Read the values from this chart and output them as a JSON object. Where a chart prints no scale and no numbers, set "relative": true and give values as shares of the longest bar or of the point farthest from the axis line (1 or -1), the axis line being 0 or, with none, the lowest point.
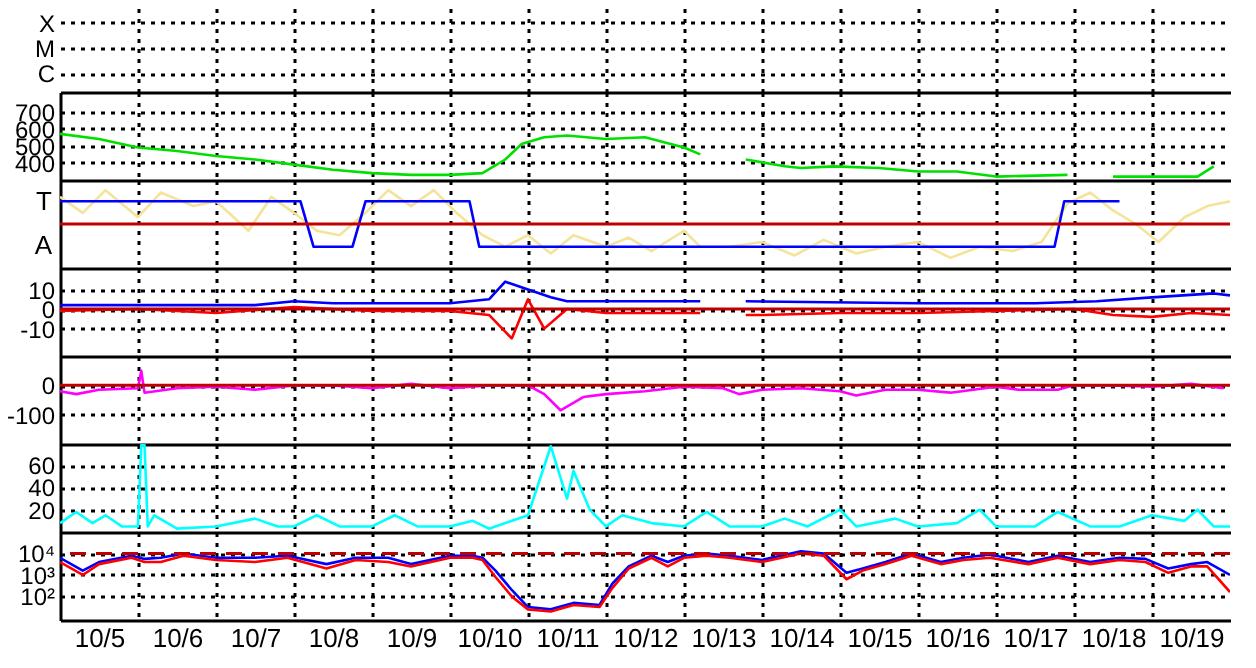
{
  "chart_data": [
    {
      "type": "other",
      "y_categories": [
        "X",
        "M",
        "C"
      ]
    },
    {
      "type": "line",
      "xlim": [
        "--10-05",
        "--10-20"
      ],
      "xticks": [
        {
          "value": "--10-05T12:00",
          "label": "10/5"
        },
        {
          "value": "--10-06",
          "label": null
        },
        {
          "value": "--10-06T12:00",
          "label": "10/6"
        },
        {
          "value": "--10-07",
          "label": null
        },
        {
          "value": "--10-07T12:00",
          "label": "10/7"
        },
        {
          "value": "--10-08",
          "label": null
        },
        {
          "value": "--10-08T12:00",
          "label": "10/8"
        },
        {
          "value": "--10-09",
          "label": null
        },
        {
          "value": "--10-09T12:00",
          "label": "10/9"
        },
        {
          "value": "--10-10",
          "label": null
        },
        {
          "value": "--10-10T12:00",
          "label": "10/10"
        },
        {
          "value": "--10-11",
          "label": null
        },
        {
          "value": "--10-11T12:00",
          "label": "10/11"
        },
        {
          "value": "--10-12",
          "label": null
        },
        {
          "value": "--10-12T12:00",
          "label": "10/12"
        },
        {
          "value": "--10-13",
          "label": null
        },
        {
          "value": "--10-13T12:00",
          "label": "10/13"
        },
        {
          "value": "--10-14",
          "label": null
        },
        {
          "value": "--10-14T12:00",
          "label": "10/14"
        },
        {
          "value": "--10-15",
          "label": null
        },
        {
          "value": "--10-15T12:00",
          "label": "10/15"
        },
        {
          "value": "--10-16",
          "label": null
        },
        {
          "value": "--10-16T12:00",
          "label": "10/16"
        },
        {
          "value": "--10-17",
          "label": null
        },
        {
          "value": "--10-17T12:00",
          "label": "10/17"
        },
        {
          "value": "--10-18",
          "label": null
        },
        {
          "value": "--10-18T12:00",
          "label": "10/18"
        },
        {
          "value": "--10-19",
          "label": null
        },
        {
          "value": "--10-19T12:00",
          "label": "10/19"
        }
      ],
      "ylim": [
        300,
        815
      ],
      "yticks": [
        400,
        500,
        600,
        700
      ],
      "grid": true,
      "tick_labels": "y",
      "series": [
        {
          "color": "#00e000",
          "x": [
            "--10-05",
            "--10-05T12:00",
            "--10-06",
            "--10-06T12:00",
            "--10-07",
            "--10-07T12:00",
            "--10-08",
            "--10-08T12:00",
            "--10-09",
            "--10-09T12:00",
            "--10-10",
            "--10-10T10:00",
            "--10-10T17:00",
            "--10-10T22:00",
            "--10-11T05:00",
            "--10-11T12:00",
            "--10-12",
            "--10-12T12:00",
            "--10-13",
            "--10-13T05:00",
            "--10-13T12:00",
            "--10-13T19:00",
            "--10-14T07:00",
            "--10-14T12:00",
            "--10-14T22:00",
            "--10-15T12:00",
            "--10-16",
            "--10-16T12:00",
            "--10-17",
            "--10-17T22:00",
            "--10-18T05:00",
            "--10-18T12:00",
            "--10-19",
            "--10-19T14:00",
            "--10-19T19:00"
          ],
          "values": [
            570,
            540,
            490,
            470,
            440,
            420,
            390,
            360,
            340,
            330,
            330,
            340,
            420,
            510,
            550,
            560,
            540,
            550,
            490,
            450,
            null,
            420,
            380,
            370,
            380,
            370,
            350,
            350,
            320,
            330,
            null,
            320,
            320,
            320,
            380
          ]
        }
      ]
    },
    {
      "type": "line",
      "xlim": [
        "--10-05",
        "--10-20"
      ],
      "xticks": [
        {
          "value": "--10-05T12:00",
          "label": "10/5"
        },
        {
          "value": "--10-06",
          "label": null
        },
        {
          "value": "--10-06T12:00",
          "label": "10/6"
        },
        {
          "value": "--10-07",
          "label": null
        },
        {
          "value": "--10-07T12:00",
          "label": "10/7"
        },
        {
          "value": "--10-08",
          "label": null
        },
        {
          "value": "--10-08T12:00",
          "label": "10/8"
        },
        {
          "value": "--10-09",
          "label": null
        },
        {
          "value": "--10-09T12:00",
          "label": "10/9"
        },
        {
          "value": "--10-10",
          "label": null
        },
        {
          "value": "--10-10T12:00",
          "label": "10/10"
        },
        {
          "value": "--10-11",
          "label": null
        },
        {
          "value": "--10-11T12:00",
          "label": "10/11"
        },
        {
          "value": "--10-12",
          "label": null
        },
        {
          "value": "--10-12T12:00",
          "label": "10/12"
        },
        {
          "value": "--10-13",
          "label": null
        },
        {
          "value": "--10-13T12:00",
          "label": "10/13"
        },
        {
          "value": "--10-14",
          "label": null
        },
        {
          "value": "--10-14T12:00",
          "label": "10/14"
        },
        {
          "value": "--10-15",
          "label": null
        },
        {
          "value": "--10-15T12:00",
          "label": "10/15"
        },
        {
          "value": "--10-16",
          "label": null
        },
        {
          "value": "--10-16T12:00",
          "label": "10/16"
        },
        {
          "value": "--10-17",
          "label": null
        },
        {
          "value": "--10-17T12:00",
          "label": "10/17"
        },
        {
          "value": "--10-18",
          "label": null
        },
        {
          "value": "--10-18T12:00",
          "label": "10/18"
        },
        {
          "value": "--10-19",
          "label": null
        },
        {
          "value": "--10-19T12:00",
          "label": "10/19"
        }
      ],
      "relative": true,
      "annotations": [
        "T",
        "A"
      ],
      "grid": "x",
      "tick_labels": false,
      "ref_lines": [
        {
          "axis": "y",
          "value": 0,
          "color": "#c00000"
        }
      ],
      "series": [
        {
          "color": "#f5e39a",
          "x": [
            "--10-05",
            "--10-05T07:00",
            "--10-05T14:00",
            "--10-06",
            "--10-06T07:00",
            "--10-06T17:00",
            "--10-07",
            "--10-07T10:00",
            "--10-07T17:00",
            "--10-08",
            "--10-08T07:00",
            "--10-08T14:00",
            "--10-08T22:00",
            "--10-09T05:00",
            "--10-09T12:00",
            "--10-09T19:00",
            "--10-10T02:00",
            "--10-10T10:00",
            "--10-10T17:00",
            "--10-11",
            "--10-11T07:00",
            "--10-11T14:00",
            "--10-12",
            "--10-12T07:00",
            "--10-12T14:00",
            "--10-13",
            "--10-13T05:00",
            "--10-13T10:00",
            "--10-13T14:00",
            "--10-14",
            "--10-14T10:00",
            "--10-14T19:00",
            "--10-15T05:00",
            "--10-15T14:00",
            "--10-16",
            "--10-16T10:00",
            "--10-16T19:00",
            "--10-17T05:00",
            "--10-17T14:00",
            "--10-17T22:00",
            "--10-18T05:00",
            "--10-18T12:00",
            "--10-18T19:00",
            "--10-19T02:00",
            "--10-19T10:00",
            "--10-19T17:00",
            "--10-20"
          ],
          "values": [
            0.8,
            0.33,
            1,
            0.2,
            0.93,
            0.53,
            0.67,
            -0.2,
            0.8,
            0.33,
            -0.2,
            -0.33,
            0.33,
            1,
            0.53,
            1,
            0.33,
            -0.33,
            -0.67,
            -0.33,
            -0.87,
            -0.33,
            -0.67,
            -0.4,
            -0.8,
            -0.2,
            -0.67,
            null,
            -0.67,
            -0.53,
            -0.93,
            -0.47,
            -0.87,
            -0.67,
            -0.53,
            -1,
            -0.67,
            -0.8,
            -0.53,
            0.6,
            0.93,
            0.4,
            0,
            -0.53,
            0.2,
            0.53,
            0.67
          ]
        },
        {
          "color": "#0000ff",
          "x": [
            "--10-05",
            "--10-08T02:00",
            "--10-08T06:00",
            "--10-08T18:00",
            "--10-08T22:00",
            "--10-10T06:00",
            "--10-10T09:00",
            "--10-17T18:00",
            "--10-17T21:00",
            "--10-18T14:00"
          ],
          "values": [
            0.67,
            0.67,
            -0.67,
            -0.67,
            0.67,
            0.67,
            -0.67,
            -0.67,
            0.67,
            0.67
          ]
        }
      ]
    },
    {
      "type": "line",
      "xlim": [
        "--10-05",
        "--10-20"
      ],
      "xticks": [
        {
          "value": "--10-05T12:00",
          "label": "10/5"
        },
        {
          "value": "--10-06",
          "label": null
        },
        {
          "value": "--10-06T12:00",
          "label": "10/6"
        },
        {
          "value": "--10-07",
          "label": null
        },
        {
          "value": "--10-07T12:00",
          "label": "10/7"
        },
        {
          "value": "--10-08",
          "label": null
        },
        {
          "value": "--10-08T12:00",
          "label": "10/8"
        },
        {
          "value": "--10-09",
          "label": null
        },
        {
          "value": "--10-09T12:00",
          "label": "10/9"
        },
        {
          "value": "--10-10",
          "label": null
        },
        {
          "value": "--10-10T12:00",
          "label": "10/10"
        },
        {
          "value": "--10-11",
          "label": null
        },
        {
          "value": "--10-11T12:00",
          "label": "10/11"
        },
        {
          "value": "--10-12",
          "label": null
        },
        {
          "value": "--10-12T12:00",
          "label": "10/12"
        },
        {
          "value": "--10-13",
          "label": null
        },
        {
          "value": "--10-13T12:00",
          "label": "10/13"
        },
        {
          "value": "--10-14",
          "label": null
        },
        {
          "value": "--10-14T12:00",
          "label": "10/14"
        },
        {
          "value": "--10-15",
          "label": null
        },
        {
          "value": "--10-15T12:00",
          "label": "10/15"
        },
        {
          "value": "--10-16",
          "label": null
        },
        {
          "value": "--10-16T12:00",
          "label": "10/16"
        },
        {
          "value": "--10-17",
          "label": null
        },
        {
          "value": "--10-17T12:00",
          "label": "10/17"
        },
        {
          "value": "--10-18",
          "label": null
        },
        {
          "value": "--10-18T12:00",
          "label": "10/18"
        },
        {
          "value": "--10-19",
          "label": null
        },
        {
          "value": "--10-19T12:00",
          "label": "10/19"
        }
      ],
      "ylim": [
        -24,
        21
      ],
      "yticks": [
        -10,
        0,
        10
      ],
      "grid": true,
      "tick_labels": "y",
      "ref_lines": [
        {
          "axis": "y",
          "value": 0,
          "color": "#c00000"
        }
      ],
      "series": [
        {
          "color": "#0000ff",
          "x": [
            "--10-05",
            "--10-07T12:00",
            "--10-08",
            "--10-08T12:00",
            "--10-10",
            "--10-10T12:00",
            "--10-10T17:00",
            "--10-11",
            "--10-11T07:00",
            "--10-11T12:00",
            "--10-13T05:00",
            "--10-13T12:00",
            "--10-13T19:00",
            "--10-16",
            "--10-17T12:00",
            "--10-18T07:00",
            "--10-19",
            "--10-19T19:00",
            "--10-20"
          ],
          "values": [
            2,
            2,
            4,
            3,
            3,
            5,
            14,
            10,
            6,
            4,
            4,
            null,
            4,
            3,
            3,
            4,
            6,
            8,
            7
          ]
        },
        {
          "color": "#ff0000",
          "x": [
            "--10-05",
            "--10-06",
            "--10-07",
            "--10-08",
            "--10-09",
            "--10-10",
            "--10-10T12:00",
            "--10-10T19:00",
            "--10-11",
            "--10-11T05:00",
            "--10-11T12:00",
            "--10-12",
            "--10-13",
            "--10-13T05:00",
            "--10-13T12:00",
            "--10-13T19:00",
            "--10-14",
            "--10-15",
            "--10-16",
            "--10-17",
            "--10-18",
            "--10-18T12:00",
            "--10-19",
            "--10-19T12:00",
            "--10-20"
          ],
          "values": [
            -1,
            0,
            -2,
            1,
            -1,
            -1,
            -3,
            -15,
            5,
            -10,
            0,
            -2,
            -2,
            -2,
            null,
            -3,
            -3,
            -2,
            -2,
            -1,
            0,
            -3,
            -4,
            -2,
            -3
          ]
        }
      ]
    },
    {
      "type": "line",
      "xlim": [
        "--10-05",
        "--10-20"
      ],
      "xticks": [
        {
          "value": "--10-05T12:00",
          "label": "10/5"
        },
        {
          "value": "--10-06",
          "label": null
        },
        {
          "value": "--10-06T12:00",
          "label": "10/6"
        },
        {
          "value": "--10-07",
          "label": null
        },
        {
          "value": "--10-07T12:00",
          "label": "10/7"
        },
        {
          "value": "--10-08",
          "label": null
        },
        {
          "value": "--10-08T12:00",
          "label": "10/8"
        },
        {
          "value": "--10-09",
          "label": null
        },
        {
          "value": "--10-09T12:00",
          "label": "10/9"
        },
        {
          "value": "--10-10",
          "label": null
        },
        {
          "value": "--10-10T12:00",
          "label": "10/10"
        },
        {
          "value": "--10-11",
          "label": null
        },
        {
          "value": "--10-11T12:00",
          "label": "10/11"
        },
        {
          "value": "--10-12",
          "label": null
        },
        {
          "value": "--10-12T12:00",
          "label": "10/12"
        },
        {
          "value": "--10-13",
          "label": null
        },
        {
          "value": "--10-13T12:00",
          "label": "10/13"
        },
        {
          "value": "--10-14",
          "label": null
        },
        {
          "value": "--10-14T12:00",
          "label": "10/14"
        },
        {
          "value": "--10-15",
          "label": null
        },
        {
          "value": "--10-15T12:00",
          "label": "10/15"
        },
        {
          "value": "--10-16",
          "label": null
        },
        {
          "value": "--10-16T12:00",
          "label": "10/16"
        },
        {
          "value": "--10-17",
          "label": null
        },
        {
          "value": "--10-17T12:00",
          "label": "10/17"
        },
        {
          "value": "--10-18",
          "label": null
        },
        {
          "value": "--10-18T12:00",
          "label": "10/18"
        },
        {
          "value": "--10-19",
          "label": null
        },
        {
          "value": "--10-19T12:00",
          "label": "10/19"
        }
      ],
      "ylim": [
        -200,
        100
      ],
      "yticks": [
        -100,
        0
      ],
      "grid": true,
      "tick_labels": "y",
      "ref_lines": [
        {
          "axis": "y",
          "value": 0,
          "color": "#c00000"
        }
      ],
      "series": [
        {
          "color": "#ff00ff",
          "x": [
            "--10-05",
            "--10-05T05:00",
            "--10-05T12:00",
            "--10-06",
            "--10-06T01:00",
            "--10-06T02:00",
            "--10-06T12:00",
            "--10-07",
            "--10-07T12:00",
            "--10-08",
            "--10-08T12:00",
            "--10-09",
            "--10-09T12:00",
            "--10-10",
            "--10-10T12:00",
            "--10-11",
            "--10-11T05:00",
            "--10-11T10:00",
            "--10-11T17:00",
            "--10-12",
            "--10-12T12:00",
            "--10-13",
            "--10-13T12:00",
            "--10-13T17:00",
            "--10-14",
            "--10-14T12:00",
            "--10-15",
            "--10-15T05:00",
            "--10-15T14:00",
            "--10-16",
            "--10-16T10:00",
            "--10-17",
            "--10-17T07:00",
            "--10-17T19:00",
            "--10-18",
            "--10-18T12:00",
            "--10-19",
            "--10-19T12:00",
            "--10-19T22:00"
          ],
          "values": [
            -20,
            -30,
            -15,
            -10,
            50,
            -25,
            -10,
            -5,
            -15,
            0,
            0,
            -10,
            5,
            -10,
            0,
            0,
            -30,
            -85,
            -40,
            -30,
            -20,
            -5,
            -10,
            -30,
            -15,
            -10,
            -20,
            -35,
            -15,
            -15,
            -25,
            -5,
            -15,
            -15,
            0,
            0,
            -5,
            5,
            -10
          ]
        }
      ]
    },
    {
      "type": "line",
      "xlim": [
        "--10-05",
        "--10-20"
      ],
      "xticks": [
        {
          "value": "--10-05T12:00",
          "label": "10/5"
        },
        {
          "value": "--10-06",
          "label": null
        },
        {
          "value": "--10-06T12:00",
          "label": "10/6"
        },
        {
          "value": "--10-07",
          "label": null
        },
        {
          "value": "--10-07T12:00",
          "label": "10/7"
        },
        {
          "value": "--10-08",
          "label": null
        },
        {
          "value": "--10-08T12:00",
          "label": "10/8"
        },
        {
          "value": "--10-09",
          "label": null
        },
        {
          "value": "--10-09T12:00",
          "label": "10/9"
        },
        {
          "value": "--10-10",
          "label": null
        },
        {
          "value": "--10-10T12:00",
          "label": "10/10"
        },
        {
          "value": "--10-11",
          "label": null
        },
        {
          "value": "--10-11T12:00",
          "label": "10/11"
        },
        {
          "value": "--10-12",
          "label": null
        },
        {
          "value": "--10-12T12:00",
          "label": "10/12"
        },
        {
          "value": "--10-13",
          "label": null
        },
        {
          "value": "--10-13T12:00",
          "label": "10/13"
        },
        {
          "value": "--10-14",
          "label": null
        },
        {
          "value": "--10-14T12:00",
          "label": "10/14"
        },
        {
          "value": "--10-15",
          "label": null
        },
        {
          "value": "--10-15T12:00",
          "label": "10/15"
        },
        {
          "value": "--10-16",
          "label": null
        },
        {
          "value": "--10-16T12:00",
          "label": "10/16"
        },
        {
          "value": "--10-17",
          "label": null
        },
        {
          "value": "--10-17T12:00",
          "label": "10/17"
        },
        {
          "value": "--10-18",
          "label": null
        },
        {
          "value": "--10-18T12:00",
          "label": "10/18"
        },
        {
          "value": "--10-19",
          "label": null
        },
        {
          "value": "--10-19T12:00",
          "label": "10/19"
        }
      ],
      "ylim": [
        0,
        79
      ],
      "yticks": [
        20,
        40,
        60
      ],
      "grid": true,
      "tick_labels": "y",
      "series": [
        {
          "color": "#00ffff",
          "x": [
            "--10-05",
            "--10-05T05:00",
            "--10-05T10:00",
            "--10-05T14:00",
            "--10-05T19:00",
            "--10-06",
            "--10-06T01:00",
            "--10-06T02:00",
            "--10-06T03:00",
            "--10-06T05:00",
            "--10-06T12:00",
            "--10-07",
            "--10-07T12:00",
            "--10-07T19:00",
            "--10-08",
            "--10-08T07:00",
            "--10-08T14:00",
            "--10-09",
            "--10-09T07:00",
            "--10-09T14:00",
            "--10-10",
            "--10-10T07:00",
            "--10-10T12:00",
            "--10-11",
            "--10-11T07:00",
            "--10-11T12:00",
            "--10-11T14:00",
            "--10-11T19:00",
            "--10-12",
            "--10-12T05:00",
            "--10-12T14:00",
            "--10-13",
            "--10-13T07:00",
            "--10-13T14:00",
            "--10-14",
            "--10-14T07:00",
            "--10-14T14:00",
            "--10-15",
            "--10-15T05:00",
            "--10-15T17:00",
            "--10-16",
            "--10-16T12:00",
            "--10-16T19:00",
            "--10-17",
            "--10-17T12:00",
            "--10-17T19:00",
            "--10-18T05:00",
            "--10-18T14:00",
            "--10-19",
            "--10-19T10:00",
            "--10-19T14:00",
            "--10-19T19:00",
            "--10-20"
          ],
          "values": [
            8,
            18,
            8,
            15,
            5,
            5,
            78,
            78,
            5,
            15,
            3,
            5,
            12,
            5,
            5,
            15,
            5,
            5,
            15,
            5,
            5,
            10,
            3,
            15,
            77,
            30,
            55,
            20,
            5,
            15,
            8,
            5,
            18,
            5,
            5,
            12,
            5,
            20,
            5,
            12,
            5,
            8,
            20,
            5,
            5,
            18,
            5,
            5,
            15,
            10,
            20,
            5,
            5
          ]
        }
      ]
    },
    {
      "type": "line",
      "xlim": [
        "--10-05",
        "--10-20"
      ],
      "xticks": [
        {
          "value": "--10-05T12:00",
          "label": "10/5"
        },
        {
          "value": "--10-06",
          "label": null
        },
        {
          "value": "--10-06T12:00",
          "label": "10/6"
        },
        {
          "value": "--10-07",
          "label": null
        },
        {
          "value": "--10-07T12:00",
          "label": "10/7"
        },
        {
          "value": "--10-08",
          "label": null
        },
        {
          "value": "--10-08T12:00",
          "label": "10/8"
        },
        {
          "value": "--10-09",
          "label": null
        },
        {
          "value": "--10-09T12:00",
          "label": "10/9"
        },
        {
          "value": "--10-10",
          "label": null
        },
        {
          "value": "--10-10T12:00",
          "label": "10/10"
        },
        {
          "value": "--10-11",
          "label": null
        },
        {
          "value": "--10-11T12:00",
          "label": "10/11"
        },
        {
          "value": "--10-12",
          "label": null
        },
        {
          "value": "--10-12T12:00",
          "label": "10/12"
        },
        {
          "value": "--10-13",
          "label": null
        },
        {
          "value": "--10-13T12:00",
          "label": "10/13"
        },
        {
          "value": "--10-14",
          "label": null
        },
        {
          "value": "--10-14T12:00",
          "label": "10/14"
        },
        {
          "value": "--10-15",
          "label": null
        },
        {
          "value": "--10-15T12:00",
          "label": "10/15"
        },
        {
          "value": "--10-16",
          "label": null
        },
        {
          "value": "--10-16T12:00",
          "label": "10/16"
        },
        {
          "value": "--10-17",
          "label": null
        },
        {
          "value": "--10-17T12:00",
          "label": "10/17"
        },
        {
          "value": "--10-18",
          "label": null
        },
        {
          "value": "--10-18T12:00",
          "label": "10/18"
        },
        {
          "value": "--10-19",
          "label": null
        },
        {
          "value": "--10-19T12:00",
          "label": "10/19"
        }
      ],
      "ylim": [
        8,
        100000
      ],
      "yticks": [
        {
          "value": 100,
          "label": "10²"
        },
        {
          "value": 1000,
          "label": "10³"
        },
        {
          "value": 10000,
          "label": "10⁴"
        }
      ],
      "log": true,
      "grid": true,
      "ref_lines": [
        {
          "axis": "y",
          "value": 10000,
          "color": "#c00000",
          "line_style": "dashed"
        }
      ],
      "x": [
        "--10-05",
        "--10-05T07:00",
        "--10-05T12:00",
        "--10-05T22:00",
        "--10-06T02:00",
        "--10-06T07:00",
        "--10-06T14:00",
        "--10-07",
        "--10-07T12:00",
        "--10-07T22:00",
        "--10-08T10:00",
        "--10-08T19:00",
        "--10-09T05:00",
        "--10-09T12:00",
        "--10-10",
        "--10-10T07:00",
        "--10-10T10:00",
        "--10-10T14:00",
        "--10-10T19:00",
        "--10-11",
        "--10-11T07:00",
        "--10-11T14:00",
        "--10-11T22:00",
        "--10-12T02:00",
        "--10-12T07:00",
        "--10-12T14:00",
        "--10-12T19:00",
        "--10-13",
        "--10-13T07:00",
        "--10-13T14:00",
        "--10-14",
        "--10-14T12:00",
        "--10-14T19:00",
        "--10-15T02:00",
        "--10-15T07:00",
        "--10-15T14:00",
        "--10-15T22:00",
        "--10-16T07:00",
        "--10-16T14:00",
        "--10-16T22:00",
        "--10-17T10:00",
        "--10-17T19:00",
        "--10-18T05:00",
        "--10-18T14:00",
        "--10-18T22:00",
        "--10-19T05:00",
        "--10-19T12:00",
        "--10-19T17:00",
        "--10-20"
      ],
      "series": [
        {
          "color": "#0000ff",
          "values": [
            6300,
            1600,
            4000,
            7900,
            5600,
            6300,
            10000,
            6300,
            6300,
            7900,
            3200,
            6300,
            6300,
            3200,
            7900,
            7900,
            6300,
            1600,
            200,
            32,
            25,
            50,
            40,
            400,
            2500,
            7900,
            4000,
            7900,
            10000,
            7900,
            5000,
            12600,
            10000,
            1260,
            2000,
            4000,
            10000,
            4000,
            6300,
            8900,
            4000,
            7900,
            4000,
            6300,
            5600,
            2000,
            3200,
            4000,
            1000
          ]
        },
        {
          "color": "#ff0000",
          "values": [
            4000,
            1000,
            3200,
            6300,
            4000,
            4000,
            7900,
            5000,
            4000,
            6300,
            2000,
            5000,
            4000,
            2500,
            6300,
            6300,
            5000,
            800,
            100,
            25,
            20,
            40,
            32,
            250,
            2000,
            6300,
            2500,
            6300,
            7900,
            6300,
            4000,
            10000,
            7900,
            630,
            1600,
            3200,
            7900,
            3200,
            5000,
            6300,
            3200,
            6300,
            3200,
            5000,
            4000,
            1260,
            2500,
            2500,
            160
          ]
        }
      ]
    }
  ]
}
